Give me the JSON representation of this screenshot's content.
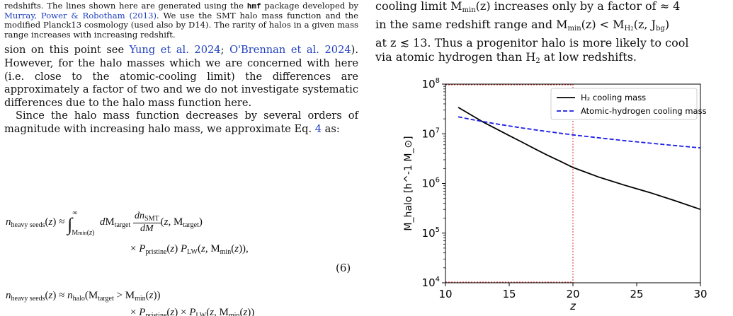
{
  "left": {
    "caption": {
      "pre": "redshifts. The lines shown here are generated using the ",
      "code": "hmf",
      "mid": " package developed by ",
      "cite": "Murray, Power & Robotham (2013)",
      "post": ". We use the SMT halo mass function and the modified Planck13 cosmology (used also by D14). The rarity of halos in a given mass range increases with increasing redshift."
    },
    "para1": {
      "pre": "sion on this point see ",
      "cite1": "Yung et al. 2024",
      "sep": "; ",
      "cite2": "O'Brennan et al. 2024",
      "post": "). However, for the halo masses which we are concerned with here (i.e. close to the atomic-cooling limit) the differences are approximately a factor of two and we do not investigate systematic differences due to the halo mass function here."
    },
    "para2": {
      "pre": "Since the halo mass function decreases by several orders of magnitude with increasing halo mass, we approximate Eq. ",
      "ref": "4",
      "post": " as:"
    },
    "eq6_number": "(6)"
  },
  "right": {
    "text": {
      "line1": "cooling limit M",
      "line1b": "(z) increases only by a factor of ≈ 4",
      "line2": "in the same redshift range and M",
      "line2b": "(z) < M",
      "line2c": "(z, J",
      "line2d": ")",
      "line3": "at z ≲ 13. Thus a progenitor halo is more likely to cool",
      "line4": "via atomic hydrogen than H",
      "line4b": " at low redshifts."
    }
  },
  "chart_data": {
    "type": "line",
    "xlabel": "z",
    "ylabel": "M_halo [h^-1 M_⊙]",
    "xlim": [
      10,
      30
    ],
    "ylim": [
      10000,
      100000000
    ],
    "yscale": "log",
    "xticks": [
      "10",
      "15",
      "20",
      "25",
      "30"
    ],
    "legend_position": "top-right",
    "vertical_line_x": 20,
    "colors": {
      "h2": "#000000",
      "atomic": "#1a1ae6",
      "vline": "#e03030"
    },
    "series": [
      {
        "name": "H₂ cooling mass",
        "x": [
          11,
          12,
          13,
          14,
          15,
          16,
          17,
          18,
          19,
          20,
          22,
          24,
          26,
          28,
          30
        ],
        "y": [
          34000000,
          24000000,
          17000000,
          12500000,
          9200000,
          6800000,
          5000000,
          3700000,
          2800000,
          2100000,
          1350000,
          930000,
          660000,
          450000,
          300000
        ]
      },
      {
        "name": "Atomic-hydrogen cooling mass",
        "x": [
          11,
          12,
          14,
          16,
          18,
          20,
          22,
          24,
          26,
          28,
          30
        ],
        "y": [
          22000000,
          19500000,
          15800000,
          13100000,
          11100000,
          9500000,
          8300000,
          7300000,
          6500000,
          5800000,
          5200000
        ]
      }
    ]
  }
}
